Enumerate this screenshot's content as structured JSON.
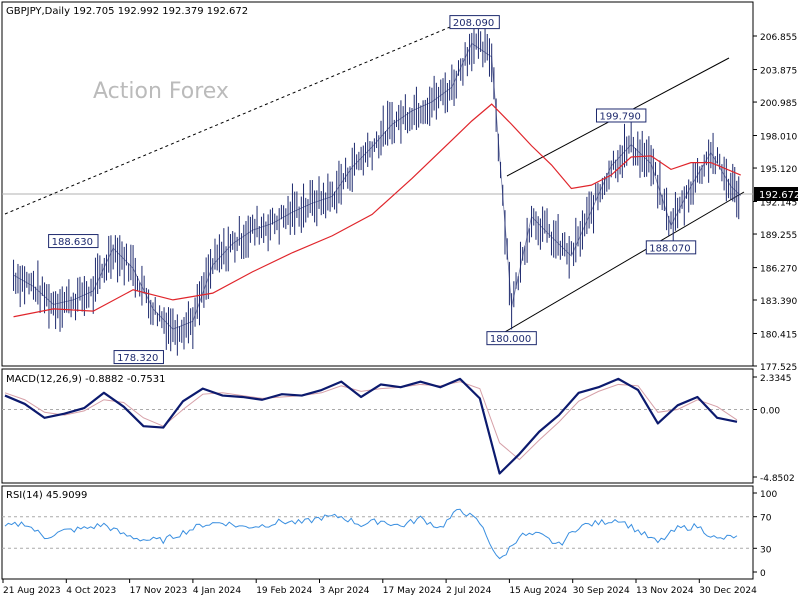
{
  "header": {
    "symbol_line": "GBPJPY,Daily  192.705 192.992 192.379 192.672",
    "watermark": "Action Forex"
  },
  "colors": {
    "price_line": "#1e2a6e",
    "ma_line": "#e0262c",
    "macd_line": "#0c1a6e",
    "signal_line": "#d6a0a8",
    "rsi_line": "#3a8fe0",
    "label_border": "#1e2a6e",
    "current_price_box": "#000000"
  },
  "chart_data": [
    {
      "type": "line",
      "title": "GBPJPY,Daily  192.705 192.992 192.379 192.672",
      "ylim": [
        177.525,
        209.5
      ],
      "y_ticks": [
        206.855,
        203.875,
        200.985,
        198.01,
        195.12,
        192.145,
        189.255,
        186.27,
        183.39,
        180.415,
        177.525
      ],
      "x_ticks": [
        "21 Aug 2023",
        "4 Oct 2023",
        "17 Nov 2023",
        "4 Jan 2024",
        "19 Feb 2024",
        "3 Apr 2024",
        "17 May 2024",
        "2 Jul 2024",
        "15 Aug 2024",
        "30 Sep 2024",
        "13 Nov 2024",
        "30 Dec 2024"
      ],
      "current_price": "192.672",
      "annotations": [
        {
          "text": "208.090",
          "x": "2024-07-10",
          "y": 208.09
        },
        {
          "text": "188.630",
          "x": "2023-10-02",
          "y": 188.63
        },
        {
          "text": "178.320",
          "x": "2023-11-17",
          "y": 178.32
        },
        {
          "text": "199.790",
          "x": "2024-10-21",
          "y": 199.79
        },
        {
          "text": "188.070",
          "x": "2024-11-25",
          "y": 188.07
        },
        {
          "text": "180.000",
          "x": "2024-08-05",
          "y": 180.0
        }
      ],
      "series": [
        {
          "role": "price_close",
          "x": [
            "2023-08-21",
            "2023-09-04",
            "2023-09-18",
            "2023-10-02",
            "2023-10-16",
            "2023-10-30",
            "2023-11-13",
            "2023-11-27",
            "2023-12-11",
            "2023-12-25",
            "2024-01-08",
            "2024-01-22",
            "2024-02-05",
            "2024-02-19",
            "2024-03-04",
            "2024-03-18",
            "2024-04-01",
            "2024-04-15",
            "2024-04-29",
            "2024-05-13",
            "2024-05-27",
            "2024-06-10",
            "2024-06-24",
            "2024-07-08",
            "2024-07-22",
            "2024-08-05",
            "2024-08-19",
            "2024-09-02",
            "2024-09-16",
            "2024-09-30",
            "2024-10-14",
            "2024-10-28",
            "2024-11-11",
            "2024-11-25",
            "2024-12-09",
            "2024-12-23",
            "2025-01-06",
            "2025-01-13"
          ],
          "values": [
            185.6,
            184.6,
            183.0,
            183.4,
            184.2,
            188.0,
            186.2,
            182.6,
            180.8,
            181.5,
            186.5,
            188.4,
            189.6,
            190.2,
            191.2,
            192.0,
            192.6,
            195.2,
            197.0,
            199.0,
            200.2,
            201.0,
            202.3,
            206.2,
            205.0,
            182.8,
            190.8,
            189.0,
            187.3,
            191.3,
            195.3,
            197.2,
            195.5,
            190.0,
            193.5,
            196.5,
            193.5,
            192.672
          ]
        },
        {
          "role": "moving_average",
          "x": [
            "2023-08-21",
            "2023-09-18",
            "2023-10-16",
            "2023-11-13",
            "2023-12-11",
            "2024-01-08",
            "2024-02-05",
            "2024-03-04",
            "2024-04-01",
            "2024-04-29",
            "2024-05-27",
            "2024-06-24",
            "2024-07-08",
            "2024-07-22",
            "2024-08-05",
            "2024-08-19",
            "2024-09-02",
            "2024-09-16",
            "2024-09-30",
            "2024-10-14",
            "2024-10-28",
            "2024-11-11",
            "2024-11-25",
            "2024-12-09",
            "2024-12-23",
            "2025-01-13"
          ],
          "values": [
            181.9,
            182.6,
            182.4,
            184.3,
            183.4,
            184.0,
            185.9,
            187.6,
            189.1,
            191.0,
            194.2,
            197.6,
            199.3,
            200.8,
            199.0,
            197.1,
            195.4,
            193.3,
            193.6,
            194.5,
            196.1,
            196.2,
            195.0,
            195.6,
            195.6,
            194.5
          ]
        }
      ]
    },
    {
      "type": "line",
      "title": "MACD(12,26,9) -0.8882 -0.7531",
      "ylim": [
        -4.8502,
        2.3345
      ],
      "y_ticks": [
        2.3345,
        0.0,
        -4.8502
      ],
      "series": [
        {
          "role": "macd",
          "values": [
            1.0,
            0.4,
            -0.6,
            -0.3,
            0.1,
            1.2,
            0.2,
            -1.2,
            -1.3,
            0.6,
            1.5,
            1.0,
            0.9,
            0.7,
            1.1,
            1.0,
            1.4,
            2.0,
            0.9,
            1.8,
            1.6,
            2.0,
            1.6,
            2.2,
            0.8,
            -4.6,
            -3.2,
            -1.6,
            -0.4,
            1.2,
            1.6,
            2.2,
            1.4,
            -1.0,
            0.3,
            0.9,
            -0.6,
            -0.8882
          ]
        },
        {
          "role": "signal",
          "values": [
            1.2,
            0.7,
            -0.2,
            -0.4,
            -0.1,
            0.7,
            0.5,
            -0.6,
            -1.2,
            0.0,
            1.1,
            1.2,
            1.0,
            0.8,
            0.9,
            1.0,
            1.2,
            1.7,
            1.3,
            1.5,
            1.6,
            1.8,
            1.7,
            2.0,
            1.5,
            -2.4,
            -3.6,
            -2.2,
            -0.9,
            0.6,
            1.3,
            1.8,
            1.7,
            -0.2,
            0.0,
            0.7,
            0.2,
            -0.7531
          ]
        }
      ]
    },
    {
      "type": "line",
      "title": "RSI(14) 45.9099",
      "ylim": [
        0,
        100
      ],
      "y_ticks": [
        100,
        70,
        30,
        0
      ],
      "series": [
        {
          "role": "rsi",
          "values": [
            57,
            62,
            44,
            52,
            55,
            60,
            47,
            41,
            40,
            50,
            60,
            63,
            57,
            59,
            64,
            62,
            69,
            70,
            60,
            65,
            58,
            68,
            56,
            80,
            62,
            14,
            46,
            47,
            34,
            58,
            62,
            67,
            52,
            37,
            55,
            58,
            41,
            45.9099
          ]
        }
      ]
    }
  ]
}
